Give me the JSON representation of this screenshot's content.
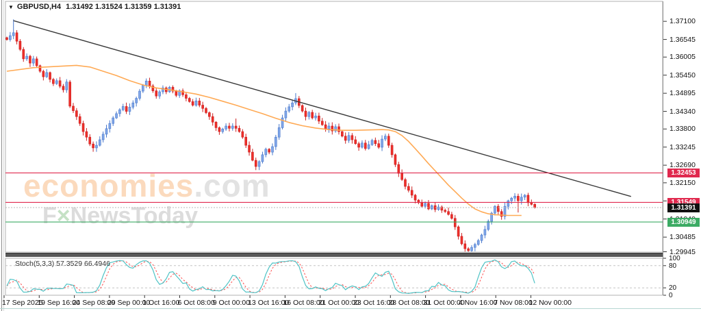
{
  "header": {
    "symbol": "GBPUSD,H4",
    "ohlc": "1.31492 1.31524 1.31359 1.31391",
    "collapse_icon": "▼"
  },
  "watermark": {
    "brand": "economies",
    "suffix": ".com",
    "sub_pre": "F",
    "sub_x": "×",
    "sub_post": "NewsToday"
  },
  "indicator": {
    "name": "Stoch(5,3,3)",
    "values": "57.3529 66.4946",
    "k_color": "#4fc3c5",
    "d_color": "#ff4f4f",
    "levels": [
      80,
      20
    ],
    "scale_labels": [
      {
        "text": "100",
        "value": 100
      },
      {
        "text": "80",
        "value": 80
      },
      {
        "text": "20",
        "value": 20
      },
      {
        "text": "0",
        "value": 0
      }
    ]
  },
  "price_axis": {
    "labels": [
      "1.37100",
      "1.36545",
      "1.36005",
      "1.35450",
      "1.34895",
      "1.34340",
      "1.33800",
      "1.33245",
      "1.32690",
      "1.32150",
      "1.31595",
      "1.31040",
      "1.30485",
      "1.29945"
    ]
  },
  "time_axis": {
    "labels": [
      "17 Sep 2025",
      "19 Sep 16:00",
      "24 Sep 08:00",
      "29 Sep 00:00",
      "1 Oct 16:00",
      "6 Oct 08:00",
      "9 Oct 00:00",
      "13 Oct 16:00",
      "16 Oct 08:00",
      "21 Oct 00:00",
      "23 Oct 16:00",
      "28 Oct 08:00",
      "31 Oct 00:00",
      "4 Nov 16:00",
      "7 Nov 08:00",
      "12 Nov 00:00"
    ]
  },
  "price_lines": [
    {
      "label": "1.32453",
      "price": 1.32453,
      "color": "#e0294e",
      "style": "solid",
      "box_bg": "#e0294e"
    },
    {
      "label": "1.31549",
      "price": 1.31549,
      "color": "#e0294e",
      "style": "solid",
      "box_bg": "#e0294e"
    },
    {
      "label": "1.31391",
      "price": 1.31391,
      "color": "#b8b8b8",
      "style": "dotted",
      "box_bg": "#111111"
    },
    {
      "label": "1.30949",
      "price": 1.30949,
      "color": "#3cab64",
      "style": "solid",
      "box_bg": "#3cab64"
    }
  ],
  "chart_data": {
    "type": "candlestick",
    "title": "GBPUSD,H4",
    "symbol": "GBPUSD",
    "timeframe": "H4",
    "last_candle_ohlc": [
      1.31492,
      1.31524,
      1.31359,
      1.31391
    ],
    "y_range": [
      1.29945,
      1.3725
    ],
    "grid": false,
    "candles": {
      "bull_fill": "#82a7e8",
      "bull_edge": "#4878cc",
      "bear_fill": "#ee2f2a",
      "bear_edge": "#cc1f1f",
      "closes": [
        1.3654,
        1.3666,
        1.3675,
        1.3649,
        1.3624,
        1.3595,
        1.3603,
        1.3582,
        1.3595,
        1.3574,
        1.3557,
        1.354,
        1.3553,
        1.3532,
        1.3519,
        1.3528,
        1.3511,
        1.35,
        1.3524,
        1.345,
        1.3436,
        1.3418,
        1.3397,
        1.3372,
        1.3355,
        1.3334,
        1.3322,
        1.333,
        1.3347,
        1.3364,
        1.3381,
        1.3397,
        1.3414,
        1.3427,
        1.3439,
        1.3449,
        1.3434,
        1.3447,
        1.346,
        1.3474,
        1.3496,
        1.3514,
        1.3527,
        1.3512,
        1.3497,
        1.3481,
        1.3494,
        1.3506,
        1.3494,
        1.3508,
        1.3496,
        1.3483,
        1.3497,
        1.3485,
        1.3474,
        1.3464,
        1.3453,
        1.3466,
        1.3453,
        1.3443,
        1.343,
        1.3418,
        1.3401,
        1.3384,
        1.3372,
        1.338,
        1.3389,
        1.3382,
        1.3389,
        1.3382,
        1.3372,
        1.3355,
        1.333,
        1.3309,
        1.3284,
        1.3265,
        1.328,
        1.3301,
        1.3318,
        1.3309,
        1.3326,
        1.3355,
        1.3384,
        1.3414,
        1.3435,
        1.3448,
        1.346,
        1.3473,
        1.3452,
        1.3435,
        1.3418,
        1.3431,
        1.3414,
        1.342,
        1.3404,
        1.3393,
        1.338,
        1.3389,
        1.3374,
        1.3387,
        1.3372,
        1.3358,
        1.3345,
        1.336,
        1.3347,
        1.3335,
        1.3324,
        1.3337,
        1.332,
        1.3332,
        1.3345,
        1.3335,
        1.3324,
        1.3349,
        1.3358,
        1.333,
        1.3301,
        1.3271,
        1.3244,
        1.3225,
        1.3204,
        1.3192,
        1.3177,
        1.3162,
        1.3154,
        1.3143,
        1.3152,
        1.3135,
        1.3145,
        1.3133,
        1.3141,
        1.3131,
        1.3127,
        1.3118,
        1.3106,
        1.308,
        1.3051,
        1.3028,
        1.3013,
        1.3007,
        1.3017,
        1.3026,
        1.3038,
        1.3055,
        1.3072,
        1.3097,
        1.3122,
        1.3143,
        1.3127,
        1.3112,
        1.3143,
        1.316,
        1.3168,
        1.3174,
        1.316,
        1.3171,
        1.3177,
        1.3154,
        1.3149,
        1.31391
      ],
      "overrides": {
        "2": {
          "h": 1.3716
        },
        "19": {
          "h": 1.353
        },
        "27": {
          "l": 1.331
        },
        "69": {
          "h": 1.3412
        },
        "75": {
          "l": 1.3254
        },
        "87": {
          "h": 1.349
        },
        "139": {
          "l": 1.3001
        },
        "154": {
          "l": 1.3124
        },
        "159": {
          "o": 1.31492,
          "h": 1.31524,
          "l": 1.31359,
          "c": 1.31391
        }
      }
    },
    "moving_average": {
      "color": "#ffaa55",
      "points": [
        [
          0,
          1.3557
        ],
        [
          8,
          1.3568
        ],
        [
          15,
          1.3572
        ],
        [
          21,
          1.3575
        ],
        [
          25,
          1.357
        ],
        [
          29,
          1.3557
        ],
        [
          33,
          1.3544
        ],
        [
          37,
          1.3528
        ],
        [
          41,
          1.3515
        ],
        [
          45,
          1.3506
        ],
        [
          49,
          1.35
        ],
        [
          53,
          1.3494
        ],
        [
          57,
          1.3487
        ],
        [
          61,
          1.3477
        ],
        [
          65,
          1.3465
        ],
        [
          69,
          1.3453
        ],
        [
          73,
          1.344
        ],
        [
          77,
          1.3427
        ],
        [
          81,
          1.3413
        ],
        [
          85,
          1.34
        ],
        [
          89,
          1.339
        ],
        [
          93,
          1.3383
        ],
        [
          97,
          1.3378
        ],
        [
          101,
          1.3376
        ],
        [
          105,
          1.3376
        ],
        [
          109,
          1.3377
        ],
        [
          113,
          1.3378
        ],
        [
          115,
          1.3377
        ],
        [
          117,
          1.3372
        ],
        [
          119,
          1.336
        ],
        [
          121,
          1.3342
        ],
        [
          123,
          1.332
        ],
        [
          125,
          1.3297
        ],
        [
          127,
          1.3274
        ],
        [
          129,
          1.3252
        ],
        [
          131,
          1.323
        ],
        [
          133,
          1.3208
        ],
        [
          135,
          1.3188
        ],
        [
          137,
          1.3168
        ],
        [
          139,
          1.315
        ],
        [
          141,
          1.3135
        ],
        [
          143,
          1.3126
        ],
        [
          145,
          1.312
        ],
        [
          147,
          1.3117
        ],
        [
          149,
          1.3116
        ],
        [
          151,
          1.3115
        ],
        [
          153,
          1.3115
        ],
        [
          155,
          1.3115
        ]
      ]
    },
    "trendline": {
      "color": "#3a3a3a",
      "start": {
        "index": 2,
        "price": 1.3712
      },
      "end": {
        "index": 188,
        "price": 1.3173
      }
    }
  }
}
